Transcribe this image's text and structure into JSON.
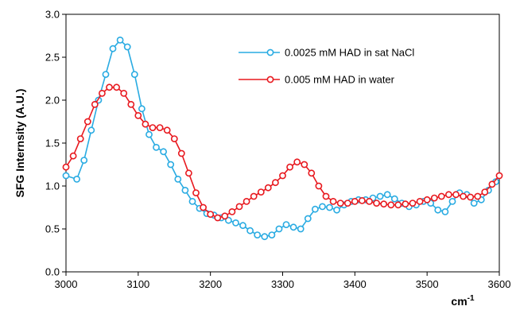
{
  "chart_data": {
    "type": "line",
    "ylabel": "SFG Internsity (A.U.)",
    "xlabel_base": "cm",
    "xlabel_sup": "-1",
    "xlim": [
      3000,
      3600
    ],
    "ylim": [
      0,
      3
    ],
    "xticks": [
      3000,
      3100,
      3200,
      3300,
      3400,
      3500,
      3600
    ],
    "yticks": [
      0.0,
      0.5,
      1.0,
      1.5,
      2.0,
      2.5,
      3.0
    ],
    "ytick_labels": [
      "0.0",
      "0.5",
      "1.0",
      "1.5",
      "2.0",
      "2.5",
      "3.0"
    ],
    "legend_position": "top-right",
    "series": [
      {
        "name": "0.0025 mM HAD in sat NaCl",
        "color": "#29ABE2",
        "marker": "open-circle",
        "points": [
          [
            3000,
            1.12
          ],
          [
            3015,
            1.08
          ],
          [
            3025,
            1.3
          ],
          [
            3035,
            1.65
          ],
          [
            3045,
            2.0
          ],
          [
            3055,
            2.3
          ],
          [
            3065,
            2.6
          ],
          [
            3075,
            2.7
          ],
          [
            3085,
            2.62
          ],
          [
            3095,
            2.3
          ],
          [
            3105,
            1.9
          ],
          [
            3115,
            1.6
          ],
          [
            3125,
            1.45
          ],
          [
            3135,
            1.4
          ],
          [
            3145,
            1.25
          ],
          [
            3155,
            1.08
          ],
          [
            3165,
            0.95
          ],
          [
            3175,
            0.82
          ],
          [
            3185,
            0.74
          ],
          [
            3195,
            0.68
          ],
          [
            3205,
            0.66
          ],
          [
            3215,
            0.63
          ],
          [
            3225,
            0.6
          ],
          [
            3235,
            0.57
          ],
          [
            3245,
            0.54
          ],
          [
            3255,
            0.48
          ],
          [
            3265,
            0.43
          ],
          [
            3275,
            0.41
          ],
          [
            3285,
            0.43
          ],
          [
            3295,
            0.5
          ],
          [
            3305,
            0.55
          ],
          [
            3315,
            0.52
          ],
          [
            3325,
            0.5
          ],
          [
            3335,
            0.62
          ],
          [
            3345,
            0.73
          ],
          [
            3355,
            0.76
          ],
          [
            3365,
            0.75
          ],
          [
            3375,
            0.72
          ],
          [
            3385,
            0.78
          ],
          [
            3395,
            0.82
          ],
          [
            3405,
            0.84
          ],
          [
            3415,
            0.84
          ],
          [
            3425,
            0.86
          ],
          [
            3435,
            0.88
          ],
          [
            3445,
            0.9
          ],
          [
            3455,
            0.85
          ],
          [
            3465,
            0.8
          ],
          [
            3475,
            0.76
          ],
          [
            3485,
            0.78
          ],
          [
            3495,
            0.82
          ],
          [
            3505,
            0.8
          ],
          [
            3515,
            0.72
          ],
          [
            3525,
            0.7
          ],
          [
            3535,
            0.82
          ],
          [
            3545,
            0.92
          ],
          [
            3555,
            0.9
          ],
          [
            3565,
            0.8
          ],
          [
            3575,
            0.84
          ],
          [
            3585,
            0.95
          ],
          [
            3595,
            1.05
          ]
        ]
      },
      {
        "name": "0.005 mM HAD in water",
        "color": "#E8191F",
        "marker": "open-circle",
        "points": [
          [
            3000,
            1.22
          ],
          [
            3010,
            1.35
          ],
          [
            3020,
            1.55
          ],
          [
            3030,
            1.75
          ],
          [
            3040,
            1.95
          ],
          [
            3050,
            2.08
          ],
          [
            3060,
            2.15
          ],
          [
            3070,
            2.15
          ],
          [
            3080,
            2.08
          ],
          [
            3090,
            1.95
          ],
          [
            3100,
            1.82
          ],
          [
            3110,
            1.72
          ],
          [
            3120,
            1.68
          ],
          [
            3130,
            1.68
          ],
          [
            3140,
            1.65
          ],
          [
            3150,
            1.55
          ],
          [
            3160,
            1.38
          ],
          [
            3170,
            1.15
          ],
          [
            3180,
            0.92
          ],
          [
            3190,
            0.75
          ],
          [
            3200,
            0.67
          ],
          [
            3210,
            0.63
          ],
          [
            3220,
            0.65
          ],
          [
            3230,
            0.7
          ],
          [
            3240,
            0.76
          ],
          [
            3250,
            0.82
          ],
          [
            3260,
            0.88
          ],
          [
            3270,
            0.93
          ],
          [
            3280,
            0.98
          ],
          [
            3290,
            1.04
          ],
          [
            3300,
            1.12
          ],
          [
            3310,
            1.22
          ],
          [
            3320,
            1.28
          ],
          [
            3330,
            1.25
          ],
          [
            3340,
            1.15
          ],
          [
            3350,
            1.0
          ],
          [
            3360,
            0.88
          ],
          [
            3370,
            0.82
          ],
          [
            3380,
            0.8
          ],
          [
            3390,
            0.8
          ],
          [
            3400,
            0.82
          ],
          [
            3410,
            0.83
          ],
          [
            3420,
            0.82
          ],
          [
            3430,
            0.8
          ],
          [
            3440,
            0.79
          ],
          [
            3450,
            0.78
          ],
          [
            3460,
            0.78
          ],
          [
            3470,
            0.79
          ],
          [
            3480,
            0.8
          ],
          [
            3490,
            0.82
          ],
          [
            3500,
            0.84
          ],
          [
            3510,
            0.86
          ],
          [
            3520,
            0.88
          ],
          [
            3530,
            0.9
          ],
          [
            3540,
            0.9
          ],
          [
            3550,
            0.88
          ],
          [
            3560,
            0.87
          ],
          [
            3570,
            0.88
          ],
          [
            3580,
            0.93
          ],
          [
            3590,
            1.02
          ],
          [
            3600,
            1.12
          ]
        ]
      }
    ]
  }
}
